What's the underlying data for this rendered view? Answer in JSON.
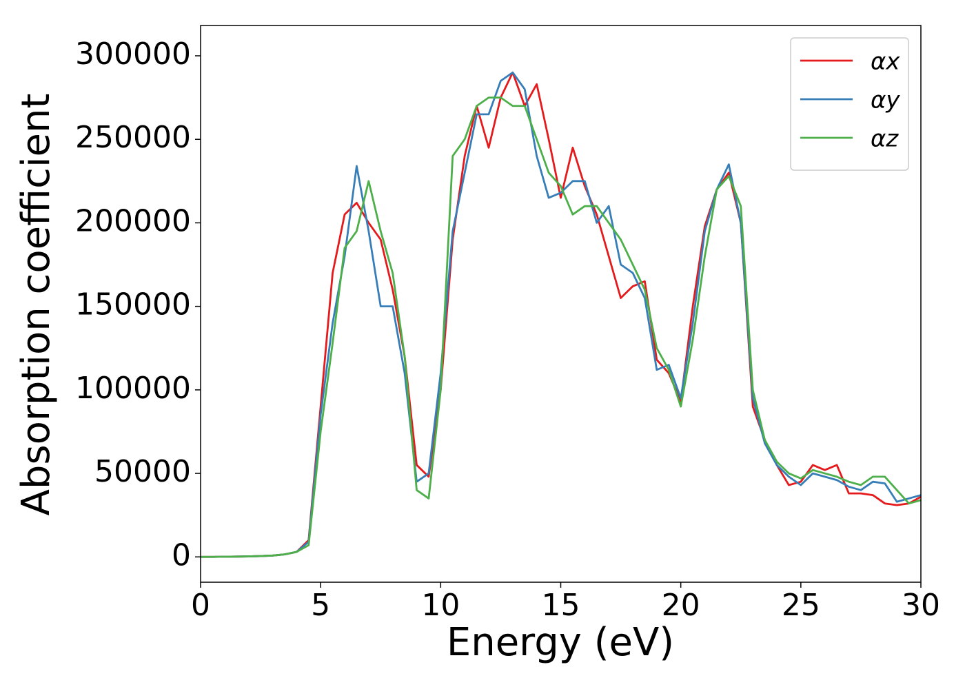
{
  "chart_data": {
    "type": "line",
    "xlabel": "Energy (eV)",
    "ylabel": "Absorption coefficient",
    "x": [
      0,
      0.5,
      1,
      1.5,
      2,
      2.5,
      3,
      3.5,
      4,
      4.5,
      5,
      5.5,
      6,
      6.5,
      7,
      7.5,
      8,
      8.5,
      9,
      9.5,
      10,
      10.5,
      11,
      11.5,
      12,
      12.5,
      13,
      13.5,
      14,
      14.5,
      15,
      15.5,
      16,
      16.5,
      17,
      17.5,
      18,
      18.5,
      19,
      19.5,
      20,
      20.5,
      21,
      21.5,
      22,
      22.5,
      23,
      23.5,
      24,
      24.5,
      25,
      25.5,
      26,
      26.5,
      27,
      27.5,
      28,
      28.5,
      29,
      29.5,
      30
    ],
    "series": [
      {
        "name": "αx",
        "color": "#e41a1c",
        "values": [
          0,
          0,
          100,
          200,
          300,
          500,
          800,
          1500,
          3000,
          10000,
          90000,
          170000,
          205000,
          212000,
          200000,
          190000,
          160000,
          120000,
          55000,
          48000,
          100000,
          190000,
          240000,
          270000,
          245000,
          275000,
          290000,
          270000,
          283000,
          250000,
          215000,
          245000,
          222000,
          205000,
          180000,
          155000,
          162000,
          165000,
          118000,
          110000,
          93000,
          150000,
          198000,
          220000,
          230000,
          200000,
          90000,
          70000,
          55000,
          43000,
          45000,
          55000,
          52000,
          55000,
          38000,
          38000,
          37000,
          32000,
          31000,
          32000,
          36000
        ]
      },
      {
        "name": "αy",
        "color": "#377eb8",
        "values": [
          0,
          0,
          100,
          200,
          300,
          500,
          800,
          1500,
          3000,
          9000,
          85000,
          140000,
          180000,
          234000,
          195000,
          150000,
          150000,
          110000,
          45000,
          50000,
          110000,
          195000,
          230000,
          265000,
          265000,
          285000,
          290000,
          280000,
          240000,
          215000,
          218000,
          225000,
          225000,
          200000,
          210000,
          175000,
          170000,
          155000,
          112000,
          115000,
          95000,
          140000,
          195000,
          220000,
          235000,
          200000,
          95000,
          68000,
          55000,
          48000,
          43000,
          50000,
          48000,
          46000,
          42000,
          40000,
          45000,
          44000,
          33000,
          35000,
          37000
        ]
      },
      {
        "name": "αz",
        "color": "#4daf4a",
        "values": [
          0,
          0,
          100,
          200,
          300,
          500,
          800,
          1500,
          3000,
          7000,
          75000,
          128000,
          185000,
          195000,
          225000,
          195000,
          170000,
          120000,
          40000,
          35000,
          100000,
          240000,
          250000,
          270000,
          275000,
          275000,
          270000,
          270000,
          250000,
          230000,
          222000,
          205000,
          210000,
          210000,
          200000,
          190000,
          175000,
          160000,
          125000,
          112000,
          90000,
          130000,
          180000,
          220000,
          228000,
          210000,
          100000,
          70000,
          57000,
          50000,
          47000,
          52000,
          50000,
          48000,
          45000,
          43000,
          48000,
          48000,
          40000,
          32000,
          34000
        ]
      }
    ],
    "xlim": [
      0,
      30
    ],
    "xticks": [
      0,
      5,
      10,
      15,
      20,
      25,
      30
    ],
    "ylim": [
      -15150,
      318150
    ],
    "yticks": [
      0,
      50000,
      100000,
      150000,
      200000,
      250000,
      300000
    ],
    "legend": "upper right"
  }
}
